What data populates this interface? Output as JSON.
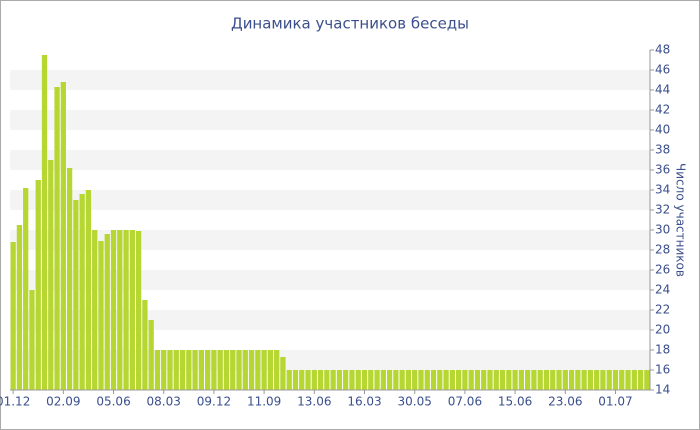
{
  "chart_data": {
    "type": "bar",
    "title": "Динамика участников беседы",
    "y_label": "Число участников",
    "categories": [
      "01.12",
      null,
      null,
      null,
      null,
      null,
      null,
      null,
      "02.09",
      null,
      null,
      null,
      null,
      null,
      null,
      null,
      "05.06",
      null,
      null,
      null,
      null,
      null,
      null,
      null,
      "08.03",
      null,
      null,
      null,
      null,
      null,
      null,
      null,
      "09.12",
      null,
      null,
      null,
      null,
      null,
      null,
      null,
      "11.09",
      null,
      null,
      null,
      null,
      null,
      null,
      null,
      "13.06",
      null,
      null,
      null,
      null,
      null,
      null,
      null,
      "16.03",
      null,
      null,
      null,
      null,
      null,
      null,
      null,
      "30.05",
      null,
      null,
      null,
      null,
      null,
      null,
      null,
      "07.06",
      null,
      null,
      null,
      null,
      null,
      null,
      null,
      "15.06",
      null,
      null,
      null,
      null,
      null,
      null,
      null,
      "23.06",
      null,
      null,
      null,
      null,
      null,
      null,
      null,
      "01.07",
      null,
      null,
      null,
      null,
      null
    ],
    "values": [
      28.8,
      30.5,
      34.2,
      24,
      35,
      47.5,
      37,
      44.3,
      44.8,
      36.2,
      33,
      33.6,
      34,
      30,
      28.9,
      29.6,
      30,
      30,
      30,
      30,
      29.9,
      23,
      21,
      18,
      18,
      18,
      18,
      18,
      18,
      18,
      18,
      18,
      18,
      18,
      18,
      18,
      18,
      18,
      18,
      18,
      18,
      18,
      18,
      17.3,
      16,
      16,
      16,
      16,
      16,
      16,
      16,
      16,
      16,
      16,
      16,
      16,
      16,
      16,
      16,
      16,
      16,
      16,
      16,
      16,
      16,
      16,
      16,
      16,
      16,
      16,
      16,
      16,
      16,
      16,
      16,
      16,
      16,
      16,
      16,
      16,
      16,
      16,
      16,
      16,
      16,
      16,
      16,
      16,
      16,
      16,
      16,
      16,
      16,
      16,
      16,
      16,
      16,
      16,
      16,
      16,
      16,
      16
    ],
    "color": "#b6d632",
    "ylim": [
      14,
      48
    ],
    "yticks": [
      14,
      16,
      18,
      20,
      22,
      24,
      26,
      28,
      30,
      32,
      34,
      36,
      38,
      40,
      42,
      44,
      46,
      48
    ],
    "grid": true
  }
}
